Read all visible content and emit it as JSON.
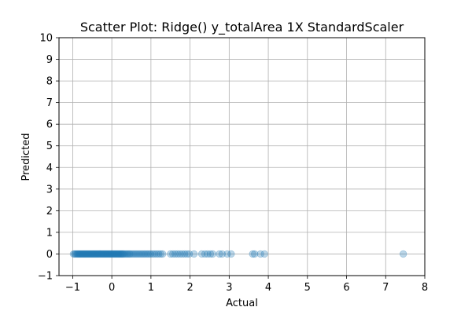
{
  "chart_data": {
    "type": "scatter",
    "title": "Scatter Plot: Ridge() y_totalArea 1X StandardScaler",
    "xlabel": "Actual",
    "ylabel": "Predicted",
    "xlim": [
      -1.35,
      8.0
    ],
    "ylim": [
      -1,
      10
    ],
    "xticks": [
      "−1",
      "0",
      "1",
      "2",
      "3",
      "4",
      "5",
      "6",
      "7",
      "8"
    ],
    "yticks": [
      "−1",
      "0",
      "1",
      "2",
      "3",
      "4",
      "5",
      "6",
      "7",
      "8",
      "9",
      "10"
    ],
    "grid": true,
    "marker_color": "#1f77b4",
    "marker_alpha": 0.3,
    "points": [
      [
        -0.98,
        0
      ],
      [
        -0.95,
        0
      ],
      [
        -0.93,
        0
      ],
      [
        -0.9,
        0
      ],
      [
        -0.88,
        0
      ],
      [
        -0.86,
        0
      ],
      [
        -0.84,
        0
      ],
      [
        -0.82,
        0
      ],
      [
        -0.8,
        0
      ],
      [
        -0.78,
        0
      ],
      [
        -0.76,
        0
      ],
      [
        -0.74,
        0
      ],
      [
        -0.72,
        0
      ],
      [
        -0.7,
        0
      ],
      [
        -0.68,
        0
      ],
      [
        -0.66,
        0
      ],
      [
        -0.64,
        0
      ],
      [
        -0.62,
        0
      ],
      [
        -0.6,
        0
      ],
      [
        -0.58,
        0
      ],
      [
        -0.56,
        0
      ],
      [
        -0.54,
        0
      ],
      [
        -0.52,
        0
      ],
      [
        -0.5,
        0
      ],
      [
        -0.48,
        0
      ],
      [
        -0.46,
        0
      ],
      [
        -0.44,
        0
      ],
      [
        -0.42,
        0
      ],
      [
        -0.4,
        0
      ],
      [
        -0.38,
        0
      ],
      [
        -0.36,
        0
      ],
      [
        -0.34,
        0
      ],
      [
        -0.32,
        0
      ],
      [
        -0.3,
        0
      ],
      [
        -0.28,
        0
      ],
      [
        -0.26,
        0
      ],
      [
        -0.24,
        0
      ],
      [
        -0.22,
        0
      ],
      [
        -0.2,
        0
      ],
      [
        -0.18,
        0
      ],
      [
        -0.16,
        0
      ],
      [
        -0.14,
        0
      ],
      [
        -0.12,
        0
      ],
      [
        -0.1,
        0
      ],
      [
        -0.08,
        0
      ],
      [
        -0.06,
        0
      ],
      [
        -0.04,
        0
      ],
      [
        -0.02,
        0
      ],
      [
        0.0,
        0
      ],
      [
        0.02,
        0
      ],
      [
        0.04,
        0
      ],
      [
        0.06,
        0
      ],
      [
        0.08,
        0
      ],
      [
        0.1,
        0
      ],
      [
        0.12,
        0
      ],
      [
        0.14,
        0
      ],
      [
        0.16,
        0
      ],
      [
        0.18,
        0
      ],
      [
        0.2,
        0
      ],
      [
        0.22,
        0
      ],
      [
        0.24,
        0
      ],
      [
        0.26,
        0
      ],
      [
        0.28,
        0
      ],
      [
        0.3,
        0
      ],
      [
        0.33,
        0
      ],
      [
        0.36,
        0
      ],
      [
        0.39,
        0
      ],
      [
        0.42,
        0
      ],
      [
        0.45,
        0
      ],
      [
        0.48,
        0
      ],
      [
        0.52,
        0
      ],
      [
        0.56,
        0
      ],
      [
        0.6,
        0
      ],
      [
        0.64,
        0
      ],
      [
        0.68,
        0
      ],
      [
        0.72,
        0
      ],
      [
        0.76,
        0
      ],
      [
        0.8,
        0
      ],
      [
        0.84,
        0
      ],
      [
        0.88,
        0
      ],
      [
        0.92,
        0
      ],
      [
        0.96,
        0
      ],
      [
        1.0,
        0
      ],
      [
        1.05,
        0
      ],
      [
        1.1,
        0
      ],
      [
        1.15,
        0
      ],
      [
        1.2,
        0
      ],
      [
        1.25,
        0
      ],
      [
        1.3,
        0
      ],
      [
        1.5,
        0
      ],
      [
        1.56,
        0
      ],
      [
        1.62,
        0
      ],
      [
        1.68,
        0
      ],
      [
        1.74,
        0
      ],
      [
        1.8,
        0
      ],
      [
        1.86,
        0
      ],
      [
        1.92,
        0
      ],
      [
        1.98,
        0
      ],
      [
        2.1,
        0
      ],
      [
        2.3,
        0
      ],
      [
        2.38,
        0
      ],
      [
        2.45,
        0
      ],
      [
        2.52,
        0
      ],
      [
        2.58,
        0
      ],
      [
        2.75,
        0
      ],
      [
        2.82,
        0
      ],
      [
        2.95,
        0
      ],
      [
        3.05,
        0
      ],
      [
        3.6,
        0
      ],
      [
        3.65,
        0
      ],
      [
        3.8,
        0
      ],
      [
        3.9,
        0
      ],
      [
        7.45,
        0
      ]
    ]
  }
}
